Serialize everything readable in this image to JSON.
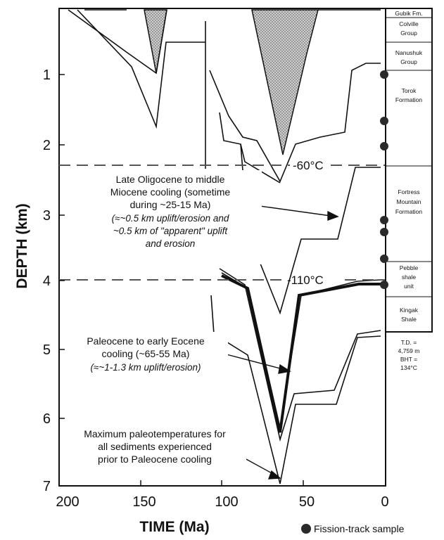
{
  "axes": {
    "x_title": "TIME (Ma)",
    "y_title": "DEPTH (km)",
    "x_ticks": [
      "200",
      "150",
      "100",
      "50",
      "0"
    ],
    "y_ticks": [
      "1",
      "2",
      "3",
      "4",
      "5",
      "6",
      "7"
    ]
  },
  "isotherms": [
    "-60°C",
    "-110°C"
  ],
  "annotations": {
    "oligocene": [
      "Late Oligocene to middle",
      "Miocene cooling (sometime",
      "during ~25-15 Ma)"
    ],
    "oligocene_italic": [
      "(≈~0.5 km uplift/erosion and",
      "~0.5 km of \"apparent\" uplift",
      "and erosion"
    ],
    "paleocene": [
      "Paleocene to early Eocene",
      "cooling (~65-55 Ma)"
    ],
    "paleocene_italic": [
      "(≈~1-1.3 km uplift/erosion)"
    ],
    "maximum": [
      "Maximum paleotemperatures for",
      "all sediments experienced",
      "prior to Paleocene cooling"
    ]
  },
  "stratigraphy": [
    [
      "Gubik Fm."
    ],
    [
      "Colville",
      "Group"
    ],
    [
      "Nanushuk",
      "Group"
    ],
    [
      "Torok",
      "Formation"
    ],
    [
      "Fortress",
      "Mountain",
      "Formation"
    ],
    [
      "Pebble",
      "shale",
      "unit"
    ],
    [
      "Kingak",
      "Shale"
    ]
  ],
  "well_info": [
    "T.D. =",
    "4,759 m",
    "BHT =",
    "134°C"
  ],
  "legend": {
    "label": "Fission-track sample",
    "icon": "filled-circle"
  },
  "colors": {
    "line": "#111111",
    "fill_pattern": "#b5b5b5",
    "sample": "#2a2a2a"
  }
}
